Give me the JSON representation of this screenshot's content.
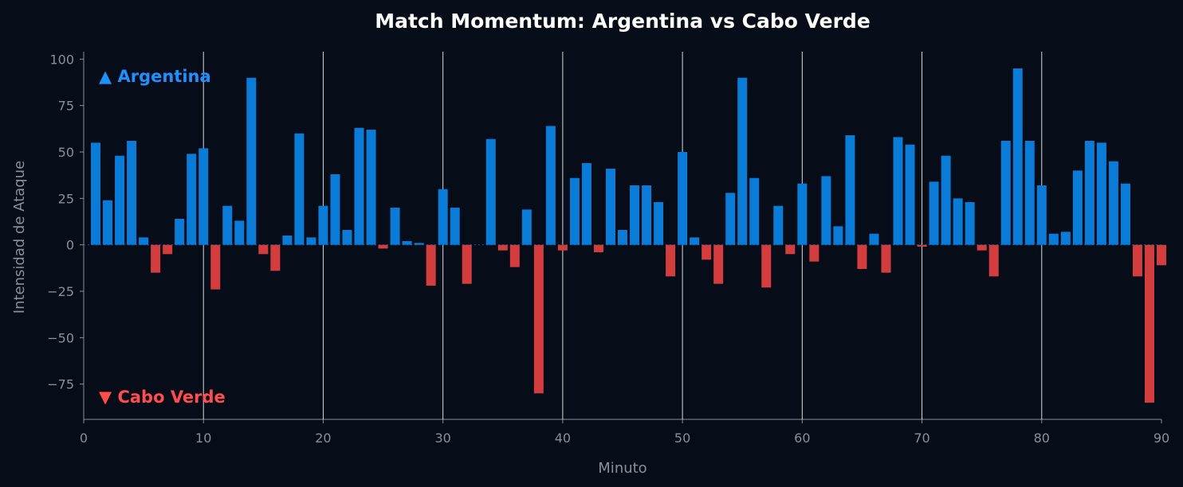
{
  "chart_data": {
    "type": "bar",
    "title": "Match Momentum: Argentina vs Cabo Verde",
    "xlabel": "Minuto",
    "ylabel": "Intensidad de Ataque",
    "xlim": [
      0,
      90
    ],
    "ylim": [
      -94,
      104
    ],
    "xticks": [
      0,
      10,
      20,
      30,
      40,
      50,
      60,
      70,
      80,
      90
    ],
    "yticks": [
      -75,
      -50,
      -25,
      0,
      25,
      50,
      75,
      100
    ],
    "vertical_lines": [
      10,
      20,
      30,
      40,
      50,
      60,
      70,
      80
    ],
    "grid": false,
    "annotations": {
      "top": "▲ Argentina",
      "bottom": "▼ Cabo Verde"
    },
    "colors": {
      "background": "#060c18",
      "positive": "#0a7bd6",
      "negative": "#d43d3d",
      "top_label": "#1e90ff",
      "bottom_label": "#ff4d4d",
      "vline": "#ffffff",
      "axis": "#8a8f98"
    },
    "x": [
      1,
      2,
      3,
      4,
      5,
      6,
      7,
      8,
      9,
      10,
      11,
      12,
      13,
      14,
      15,
      16,
      17,
      18,
      19,
      20,
      21,
      22,
      23,
      24,
      25,
      26,
      27,
      28,
      29,
      30,
      31,
      32,
      33,
      34,
      35,
      36,
      37,
      38,
      39,
      40,
      41,
      42,
      43,
      44,
      45,
      46,
      47,
      48,
      49,
      50,
      51,
      52,
      53,
      54,
      55,
      56,
      57,
      58,
      59,
      60,
      61,
      62,
      63,
      64,
      65,
      66,
      67,
      68,
      69,
      70,
      71,
      72,
      73,
      74,
      75,
      76,
      77,
      78,
      79,
      80,
      81,
      82,
      83,
      84,
      85,
      86,
      87,
      88,
      89,
      90
    ],
    "values": [
      55,
      24,
      48,
      56,
      4,
      -15,
      -5,
      14,
      49,
      52,
      -24,
      21,
      13,
      90,
      -5,
      -14,
      5,
      60,
      4,
      21,
      38,
      8,
      63,
      62,
      -2,
      20,
      2,
      1,
      -22,
      30,
      20,
      -21,
      0,
      57,
      -3,
      -12,
      19,
      -80,
      64,
      -3,
      36,
      44,
      -4,
      41,
      8,
      32,
      32,
      23,
      -17,
      50,
      4,
      -8,
      -21,
      28,
      90,
      36,
      -23,
      21,
      -5,
      33,
      -9,
      37,
      10,
      59,
      -13,
      6,
      -15,
      58,
      54,
      -1,
      34,
      48,
      25,
      23,
      -3,
      -17,
      56,
      95,
      56,
      32,
      6,
      7,
      40,
      56,
      55,
      45,
      33,
      -17,
      -85,
      -11
    ]
  }
}
